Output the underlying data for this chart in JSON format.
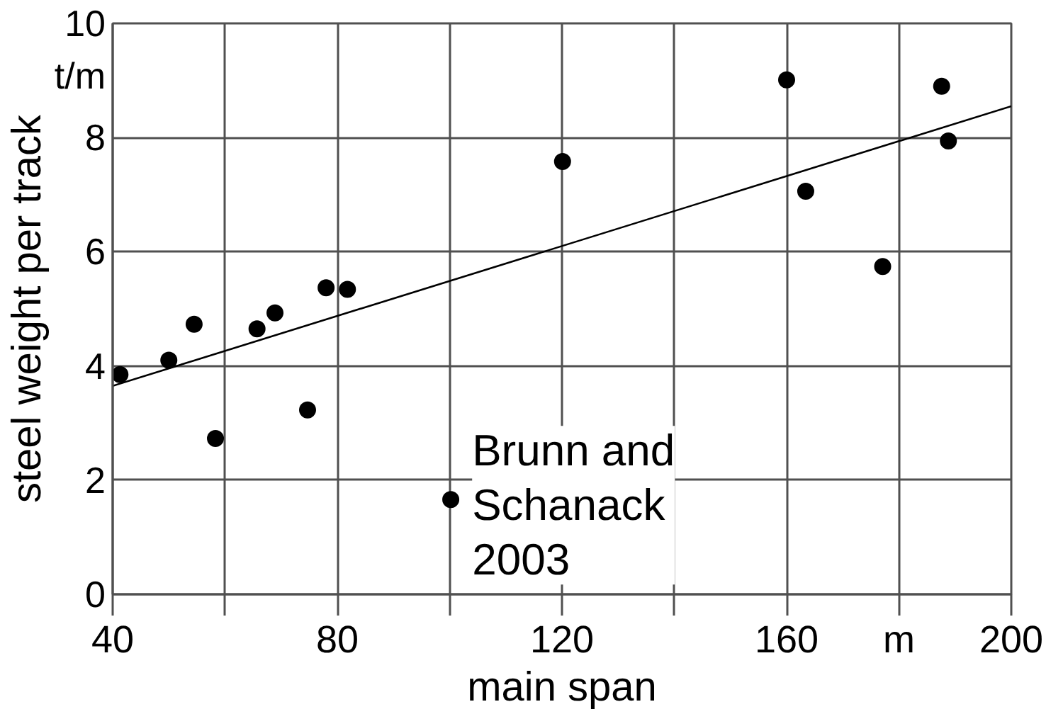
{
  "chart_data": {
    "type": "scatter",
    "xlabel": "main span",
    "ylabel": "steel weight per track",
    "annotations": [
      "t/m",
      "Brunn and Schanack 2003"
    ],
    "xlim": [
      40,
      200
    ],
    "ylim": [
      0,
      10
    ],
    "xticks": [
      40,
      {
        "value": 60,
        "label": null
      },
      80,
      {
        "value": 100,
        "label": null
      },
      120,
      {
        "value": 140,
        "label": null
      },
      160,
      {
        "value": 180,
        "label": "m"
      },
      200
    ],
    "yticks": [
      0,
      2,
      4,
      6,
      8,
      10
    ],
    "grid": true,
    "series": [
      {
        "color": "#000000",
        "marker": "circle",
        "x": [
          41.3,
          50.0,
          54.5,
          58.3,
          65.7,
          68.9,
          74.7,
          78.0,
          81.8,
          100.2,
          120.1,
          160.0,
          163.4,
          177.1,
          187.6,
          188.8
        ],
        "values": [
          3.85,
          4.1,
          4.73,
          2.73,
          4.65,
          4.93,
          3.23,
          5.37,
          5.34,
          1.66,
          7.58,
          9.01,
          7.06,
          5.74,
          8.9,
          7.94
        ]
      },
      {
        "type": "line",
        "color": "#000000",
        "x": [
          40,
          200
        ],
        "values": [
          3.65,
          8.55
        ]
      }
    ]
  }
}
